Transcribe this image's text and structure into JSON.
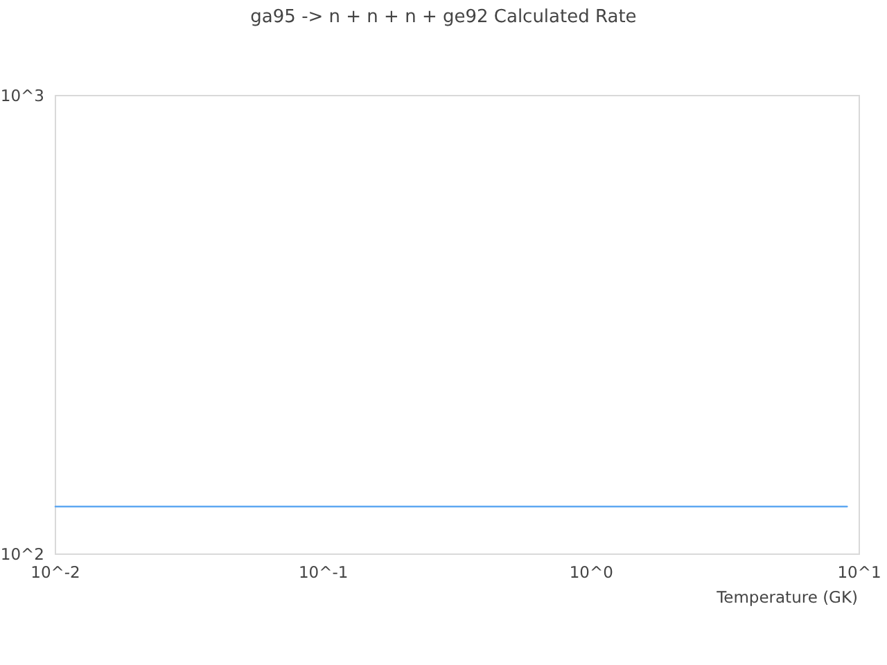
{
  "chart_data": {
    "type": "line",
    "title": "ga95 -> n + n + n + ge92 Calculated Rate",
    "xlabel": "Temperature (GK)",
    "x": [
      0.01,
      9
    ],
    "series": [
      {
        "color": "#5ea8f2",
        "values": [
          127,
          127
        ]
      }
    ],
    "xlim": [
      0.01,
      10
    ],
    "ylim": [
      100,
      1000
    ],
    "xticks": [
      {
        "value": 0.01,
        "label": "10^-2"
      },
      {
        "value": 0.1,
        "label": "10^-1"
      },
      {
        "value": 1,
        "label": "10^0"
      },
      {
        "value": 10,
        "label": "10^1"
      }
    ],
    "yticks": [
      {
        "value": 100,
        "label": "10^2"
      },
      {
        "value": 1000,
        "label": "10^3"
      }
    ],
    "log": "xy"
  }
}
